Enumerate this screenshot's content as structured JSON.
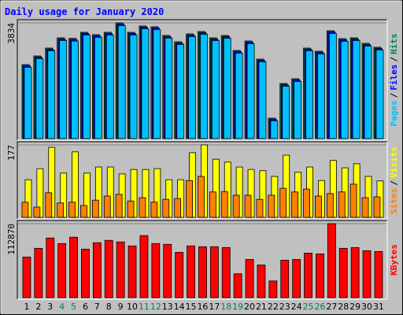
{
  "legend_separator": "/",
  "chart_data": [
    {
      "type": "bar",
      "title": "Daily usage for January 2020",
      "ylim": [
        0,
        3834
      ],
      "yticks": [
        3834
      ],
      "series": [
        {
          "name": "Pages",
          "color": "#00c0ff",
          "values": [
            2362,
            2648,
            2909,
            3248,
            3230,
            3431,
            3353,
            3431,
            3744,
            3431,
            3640,
            3614,
            3327,
            3118,
            3379,
            3457,
            3248,
            3327,
            2831,
            3144,
            2544,
            588,
            1736,
            1892,
            2909,
            2805,
            3483,
            3222,
            3248,
            3066,
            2936
          ]
        },
        {
          "name": "Files",
          "color": "#0000ff",
          "values": [
            2412,
            2698,
            2959,
            3298,
            3280,
            3481,
            3403,
            3481,
            3794,
            3481,
            3690,
            3664,
            3377,
            3168,
            3429,
            3507,
            3298,
            3377,
            2881,
            3194,
            2594,
            638,
            1786,
            1942,
            2959,
            2855,
            3533,
            3272,
            3298,
            3116,
            2986
          ]
        },
        {
          "name": "Hits",
          "color": "#00805c",
          "values": [
            2452,
            2738,
            2999,
            3338,
            3320,
            3521,
            3443,
            3521,
            3834,
            3521,
            3730,
            3704,
            3417,
            3208,
            3469,
            3547,
            3338,
            3417,
            2921,
            3234,
            2634,
            678,
            1826,
            1982,
            2999,
            2895,
            3573,
            3312,
            3338,
            3156,
            3026
          ]
        }
      ]
    },
    {
      "type": "bar",
      "ylim": [
        0,
        177
      ],
      "yticks": [
        177
      ],
      "series": [
        {
          "name": "Sites",
          "color": "#ff8000",
          "values": [
            37,
            25,
            60,
            35,
            37,
            29,
            42,
            52,
            56,
            40,
            48,
            37,
            44,
            46,
            90,
            100,
            62,
            63,
            54,
            54,
            44,
            54,
            71,
            62,
            69,
            52,
            58,
            62,
            81,
            48,
            50
          ]
        },
        {
          "name": "Visits",
          "color": "#ffff00",
          "values": [
            92,
            119,
            171,
            108,
            160,
            108,
            123,
            123,
            106,
            117,
            117,
            119,
            92,
            92,
            158,
            177,
            142,
            135,
            123,
            117,
            114,
            100,
            152,
            110,
            123,
            90,
            139,
            121,
            131,
            100,
            89
          ]
        }
      ]
    },
    {
      "type": "bar",
      "ylim": [
        0,
        112870
      ],
      "yticks": [
        112870
      ],
      "categories": [
        "1",
        "2",
        "3",
        "4",
        "5",
        "6",
        "7",
        "8",
        "9",
        "10",
        "11",
        "12",
        "13",
        "14",
        "15",
        "16",
        "17",
        "18",
        "19",
        "20",
        "21",
        "22",
        "23",
        "24",
        "25",
        "26",
        "27",
        "28",
        "29",
        "30",
        "31"
      ],
      "label_colors": [
        "#000000",
        "#000000",
        "#000000",
        "#00805c",
        "#00805c",
        "#000000",
        "#000000",
        "#000000",
        "#000000",
        "#000000",
        "#00805c",
        "#00805c",
        "#000000",
        "#000000",
        "#000000",
        "#000000",
        "#000000",
        "#00805c",
        "#00805c",
        "#000000",
        "#000000",
        "#000000",
        "#000000",
        "#000000",
        "#00805c",
        "#00805c",
        "#000000",
        "#000000",
        "#000000",
        "#000000",
        "#000000"
      ],
      "series": [
        {
          "name": "KBytes",
          "color": "#ff0000",
          "values": [
            61899,
            75249,
            91028,
            82532,
            92241,
            74036,
            83745,
            87386,
            84959,
            78891,
            94669,
            82532,
            81318,
            69181,
            78891,
            77677,
            77677,
            76463,
            36411,
            58258,
            49762,
            25488,
            57044,
            58258,
            67967,
            66754,
            112870,
            75249,
            76463,
            71608,
            70395
          ]
        }
      ]
    }
  ]
}
